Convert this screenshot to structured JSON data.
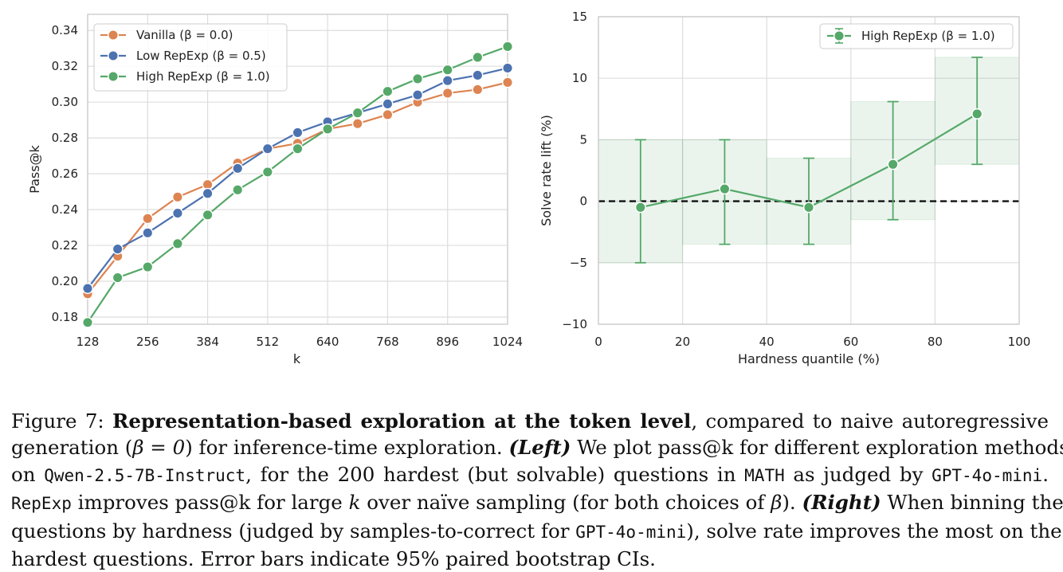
{
  "chart_data": [
    {
      "type": "line",
      "xlabel": "k",
      "ylabel": "Pass@k",
      "xticks": [
        128,
        256,
        384,
        512,
        640,
        768,
        896,
        1024
      ],
      "yticks": [
        "0.18",
        "0.20",
        "0.22",
        "0.24",
        "0.26",
        "0.28",
        "0.30",
        "0.32",
        "0.34"
      ],
      "xlim": [
        128,
        1024
      ],
      "ylim": [
        0.176,
        0.349
      ],
      "legend_position": "top-left",
      "x": [
        128,
        192,
        256,
        320,
        384,
        448,
        512,
        576,
        640,
        704,
        768,
        832,
        896,
        960,
        1024
      ],
      "series": [
        {
          "name": "Vanilla (β = 0.0)",
          "color": "#dd8452",
          "values": [
            0.193,
            0.214,
            0.235,
            0.247,
            0.254,
            0.266,
            0.274,
            0.277,
            0.285,
            0.288,
            0.293,
            0.3,
            0.305,
            0.307,
            0.311
          ]
        },
        {
          "name": "Low RepExp (β = 0.5)",
          "color": "#4c72b0",
          "values": [
            0.196,
            0.218,
            0.227,
            0.238,
            0.249,
            0.263,
            0.274,
            0.283,
            0.289,
            0.294,
            0.299,
            0.304,
            0.312,
            0.315,
            0.319
          ]
        },
        {
          "name": "High RepExp (β = 1.0)",
          "color": "#55a868",
          "values": [
            0.177,
            0.202,
            0.208,
            0.221,
            0.237,
            0.251,
            0.261,
            0.274,
            0.285,
            0.294,
            0.306,
            0.313,
            0.318,
            0.325,
            0.331
          ]
        }
      ]
    },
    {
      "type": "line",
      "xlabel": "Hardness quantile (%)",
      "ylabel": "Solve rate lift (%)",
      "xticks": [
        "0",
        "20",
        "40",
        "60",
        "80",
        "100"
      ],
      "yticks": [
        "−10",
        "−5",
        "0",
        "5",
        "10",
        "15"
      ],
      "xlim": [
        0,
        100
      ],
      "ylim": [
        -10,
        15
      ],
      "legend_position": "top-right",
      "reference_line_y": 0,
      "series": [
        {
          "name": "High RepExp (β = 1.0)",
          "color": "#55a868",
          "x": [
            10,
            30,
            50,
            70,
            90
          ],
          "values": [
            -0.5,
            1.0,
            -0.5,
            3.0,
            7.1
          ],
          "ci_low": [
            -5.0,
            -3.5,
            -3.5,
            -1.5,
            3.0
          ],
          "ci_high": [
            5.0,
            5.0,
            3.5,
            8.1,
            11.7
          ],
          "bins": [
            [
              0,
              20
            ],
            [
              20,
              40
            ],
            [
              40,
              60
            ],
            [
              60,
              80
            ],
            [
              80,
              100
            ]
          ]
        }
      ]
    }
  ],
  "caption": {
    "l1_a": "Figure 7: ",
    "l1_b": "Representation-based exploration at the token level",
    "l1_c": ", compared to naive autoregressive",
    "l2_a": "generation (",
    "l2_math": "β = 0",
    "l2_b": ") for inference-time exploration. ",
    "l2_left": "(Left)",
    "l2_c": " We plot pass@k for different exploration methods",
    "l3_a": "on ",
    "l3_model": "Qwen-2.5-7B-Instruct",
    "l3_b": ", for the 200 hardest (but solvable) questions in ",
    "l3_math": "MATH",
    "l3_c": " as judged by ",
    "l3_gpt": "GPT-4o-mini",
    "l3_d": ".",
    "l4_rep": "RepExp",
    "l4_a": " improves pass@k for large ",
    "l4_k": "k",
    "l4_b": " over naïve sampling (for both choices of ",
    "l4_beta": "β",
    "l4_c": "). ",
    "l4_right": "(Right)",
    "l4_d": " When binning the",
    "l5_a": "questions by hardness (judged by samples-to-correct for ",
    "l5_gpt": "GPT-4o-mini",
    "l5_b": "), solve rate improves the most on the",
    "l6": "hardest questions. Error bars indicate 95% paired bootstrap CIs."
  }
}
